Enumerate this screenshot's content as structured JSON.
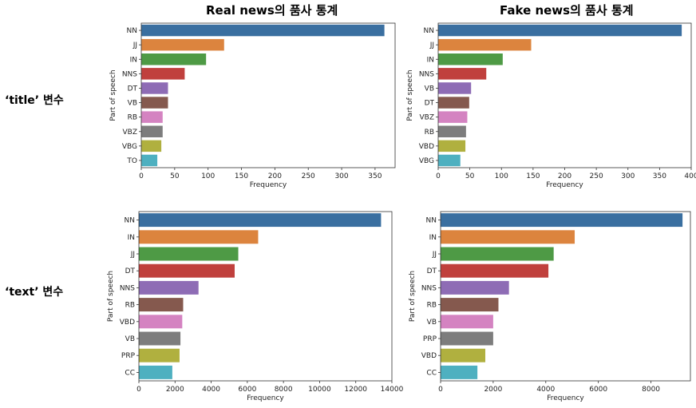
{
  "headers": {
    "col_real": "Real news의 품사 통계",
    "col_fake": "Fake news의 품사 통계",
    "row_title": "‘title’ 변수",
    "row_text": "‘text’ 변수"
  },
  "colors": [
    "#3a6fa0",
    "#dc843e",
    "#4e9a45",
    "#c0403d",
    "#8e6cb5",
    "#85594e",
    "#d483c1",
    "#7d7d7d",
    "#b0b03f",
    "#4eb0c0"
  ],
  "chart_data": [
    {
      "type": "bar",
      "orientation": "horizontal",
      "title": "",
      "xlabel": "Frequency",
      "ylabel": "Part of speech",
      "categories": [
        "NN",
        "JJ",
        "IN",
        "NNS",
        "DT",
        "VB",
        "RB",
        "VBZ",
        "VBG",
        "TO"
      ],
      "values": [
        364,
        124,
        97,
        65,
        40,
        40,
        32,
        32,
        30,
        24
      ],
      "xlim": [
        0,
        380
      ],
      "xticks": [
        0,
        50,
        100,
        150,
        200,
        250,
        300,
        350
      ],
      "grid": false
    },
    {
      "type": "bar",
      "orientation": "horizontal",
      "title": "",
      "xlabel": "Frequency",
      "ylabel": "Part of speech",
      "categories": [
        "NN",
        "JJ",
        "IN",
        "NNS",
        "VB",
        "DT",
        "VBZ",
        "RB",
        "VBD",
        "VBG"
      ],
      "values": [
        385,
        147,
        102,
        76,
        52,
        49,
        46,
        44,
        43,
        35
      ],
      "xlim": [
        0,
        400
      ],
      "xticks": [
        0,
        50,
        100,
        150,
        200,
        250,
        300,
        350,
        400
      ],
      "xtick_labels": [
        "0",
        "50",
        "100",
        "150",
        "200",
        "250",
        "300",
        "350",
        "400"
      ],
      "grid": false
    },
    {
      "type": "bar",
      "orientation": "horizontal",
      "title": "",
      "xlabel": "Frequency",
      "ylabel": "Part of speech",
      "categories": [
        "NN",
        "IN",
        "JJ",
        "DT",
        "NNS",
        "RB",
        "VBD",
        "VB",
        "PRP",
        "CC"
      ],
      "values": [
        13400,
        6600,
        5500,
        5300,
        3300,
        2450,
        2400,
        2300,
        2250,
        1850
      ],
      "xlim": [
        0,
        14000
      ],
      "xticks": [
        0,
        2000,
        4000,
        6000,
        8000,
        10000,
        12000,
        14000
      ],
      "grid": false
    },
    {
      "type": "bar",
      "orientation": "horizontal",
      "title": "",
      "xlabel": "Frequency",
      "ylabel": "Part of speech",
      "categories": [
        "NN",
        "IN",
        "JJ",
        "DT",
        "NNS",
        "RB",
        "VB",
        "PRP",
        "VBD",
        "CC"
      ],
      "values": [
        9200,
        5100,
        4300,
        4100,
        2600,
        2200,
        2000,
        2000,
        1700,
        1400
      ],
      "xlim": [
        0,
        9500
      ],
      "xticks": [
        0,
        2000,
        4000,
        6000,
        8000
      ],
      "grid": false
    }
  ]
}
